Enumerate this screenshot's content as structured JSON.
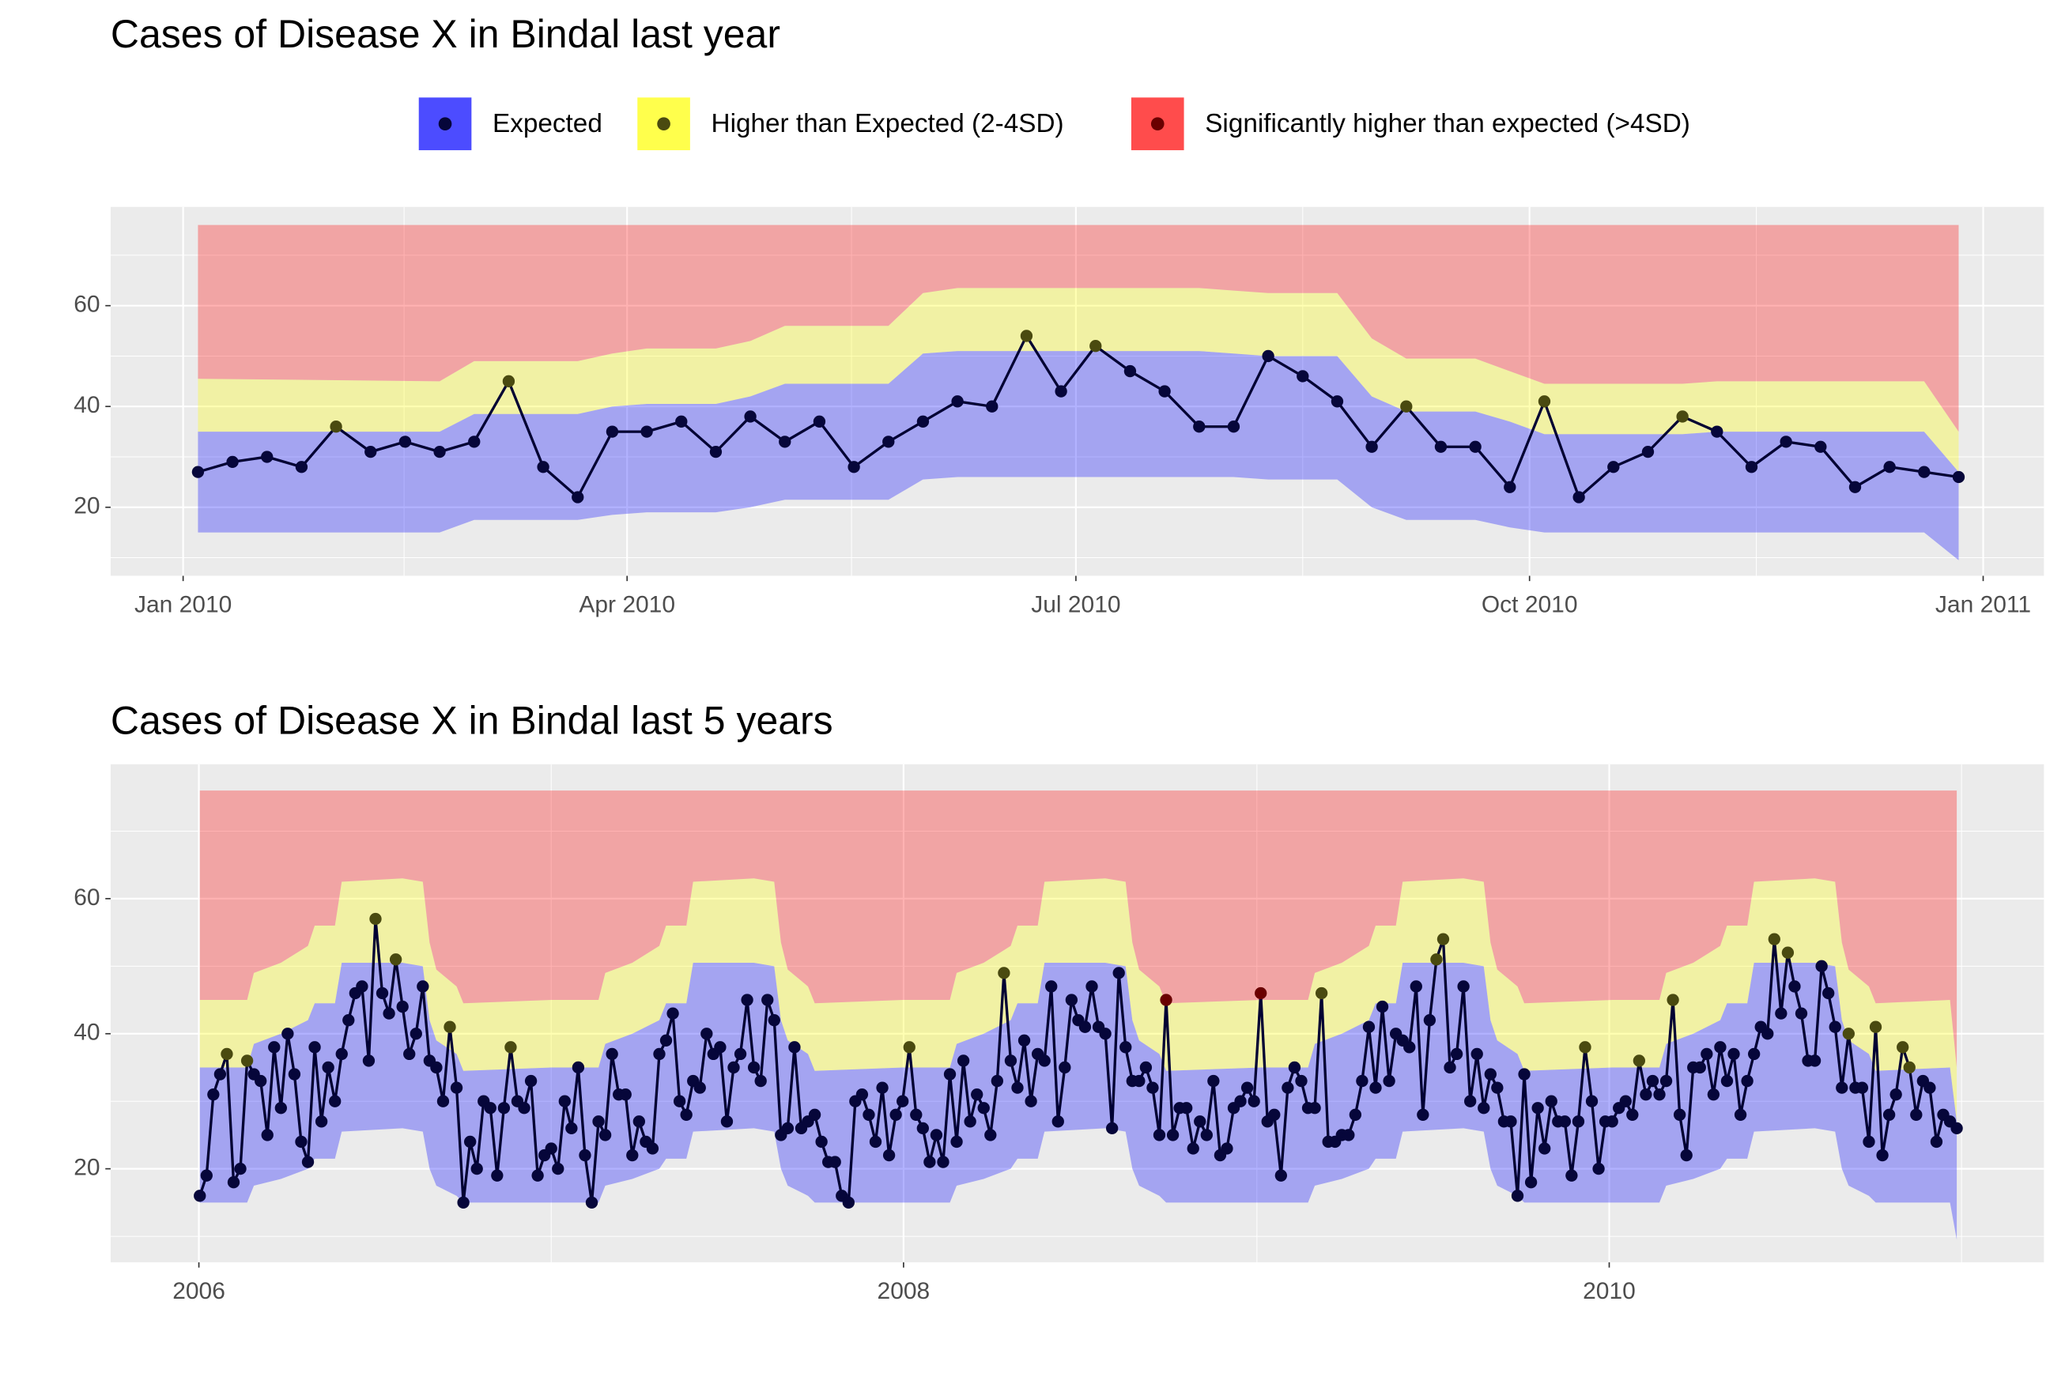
{
  "chart_data": [
    {
      "type": "line",
      "title": "Cases of Disease X in Bindal last year",
      "legend": "top",
      "grid": true,
      "fill_alpha": 0.3,
      "legend_alpha": 0.7,
      "line_color": "#000033",
      "bands": [
        {
          "name": "Expected",
          "color": "#0000ff",
          "point_color": "#06063a"
        },
        {
          "name": "Higher than Expected (2-4SD)",
          "color": "#ffff00",
          "point_color": "#4a4a10"
        },
        {
          "name": "Significantly higher than expected (>4SD)",
          "color": "#ff0000",
          "point_color": "#6a0000"
        }
      ],
      "x": [
        0,
        1,
        2,
        3,
        4,
        5,
        6,
        7,
        8,
        9,
        10,
        11,
        12,
        13,
        14,
        15,
        16,
        17,
        18,
        19,
        20,
        21,
        22,
        23,
        24,
        25,
        26,
        27,
        28,
        29,
        30,
        31,
        32,
        33,
        34,
        35,
        36,
        37,
        38,
        39,
        40,
        41,
        42,
        43,
        44,
        45,
        46,
        47,
        48,
        49,
        50,
        51
      ],
      "values": [
        27,
        29,
        30,
        28,
        36,
        31,
        33,
        31,
        33,
        45,
        28,
        22,
        35,
        35,
        37,
        31,
        38,
        33,
        37,
        28,
        33,
        37,
        41,
        40,
        54,
        43,
        52,
        47,
        43,
        36,
        36,
        50,
        46,
        41,
        32,
        40,
        32,
        32,
        24,
        41,
        22,
        28,
        31,
        38,
        35,
        28,
        33,
        32,
        24,
        28,
        27,
        26
      ],
      "band_x": [
        0,
        7,
        8,
        11,
        12,
        13,
        15,
        16,
        17,
        20,
        21,
        22,
        29,
        30,
        31,
        33,
        34,
        35,
        37,
        38,
        39,
        43,
        44,
        50,
        51
      ],
      "band_edges": [
        [
          15,
          15,
          17.5,
          17.5,
          18.5,
          19,
          19,
          20,
          21.5,
          21.5,
          25.5,
          26,
          26,
          26,
          25.5,
          25.5,
          20,
          17.5,
          17.5,
          16,
          15,
          15,
          15,
          15,
          9.5
        ],
        [
          35,
          35,
          38.5,
          38.5,
          40,
          40.5,
          40.5,
          42,
          44.5,
          44.5,
          50.5,
          51,
          51,
          50.5,
          50,
          50,
          42,
          39,
          39,
          37,
          34.5,
          34.5,
          35,
          35,
          27
        ],
        [
          45.5,
          45,
          49,
          49,
          50.5,
          51.5,
          51.5,
          53,
          56,
          56,
          62.5,
          63.5,
          63.5,
          63,
          62.5,
          62.5,
          53.5,
          49.5,
          49.5,
          47,
          44.5,
          44.5,
          45,
          45,
          35
        ],
        [
          76,
          76,
          76,
          76,
          76,
          76,
          76,
          76,
          76,
          76,
          76,
          76,
          76,
          76,
          76,
          76,
          76,
          76,
          76,
          76,
          76,
          76,
          76,
          76,
          76
        ]
      ],
      "xlim": [
        -2.53,
        53.47
      ],
      "xticks": [
        {
          "value": -0.43,
          "label": "Jan 2010"
        },
        {
          "value": 12.43,
          "label": "Apr 2010"
        },
        {
          "value": 25.43,
          "label": "Jul 2010"
        },
        {
          "value": 38.57,
          "label": "Oct 2010"
        },
        {
          "value": 51.71,
          "label": "Jan 2011"
        }
      ],
      "xminor": [
        5.97,
        18.93,
        32.0,
        45.14
      ],
      "ylim": [
        6.4,
        79.6
      ],
      "yticks": [
        20,
        40,
        60
      ],
      "yminor": [
        10,
        30,
        50,
        70
      ]
    },
    {
      "type": "line",
      "title": "Cases of Disease X in Bindal last 5 years",
      "grid": true,
      "fill_alpha": 0.3,
      "line_color": "#000033",
      "x": [
        0,
        1,
        2,
        3,
        4,
        5,
        6,
        7,
        8,
        9,
        10,
        11,
        12,
        13,
        14,
        15,
        16,
        17,
        18,
        19,
        20,
        21,
        22,
        23,
        24,
        25,
        26,
        27,
        28,
        29,
        30,
        31,
        32,
        33,
        34,
        35,
        36,
        37,
        38,
        39,
        40,
        41,
        42,
        43,
        44,
        45,
        46,
        47,
        48,
        49,
        50,
        51,
        52,
        53,
        54,
        55,
        56,
        57,
        58,
        59,
        60,
        61,
        62,
        63,
        64,
        65,
        66,
        67,
        68,
        69,
        70,
        71,
        72,
        73,
        74,
        75,
        76,
        77,
        78,
        79,
        80,
        81,
        82,
        83,
        84,
        85,
        86,
        87,
        88,
        89,
        90,
        91,
        92,
        93,
        94,
        95,
        96,
        97,
        98,
        99,
        100,
        101,
        102,
        103,
        104,
        105,
        106,
        107,
        108,
        109,
        110,
        111,
        112,
        113,
        114,
        115,
        116,
        117,
        118,
        119,
        120,
        121,
        122,
        123,
        124,
        125,
        126,
        127,
        128,
        129,
        130,
        131,
        132,
        133,
        134,
        135,
        136,
        137,
        138,
        139,
        140,
        141,
        142,
        143,
        144,
        145,
        146,
        147,
        148,
        149,
        150,
        151,
        152,
        153,
        154,
        155,
        156,
        157,
        158,
        159,
        160,
        161,
        162,
        163,
        164,
        165,
        166,
        167,
        168,
        169,
        170,
        171,
        172,
        173,
        174,
        175,
        176,
        177,
        178,
        179,
        180,
        181,
        182,
        183,
        184,
        185,
        186,
        187,
        188,
        189,
        190,
        191,
        192,
        193,
        194,
        195,
        196,
        197,
        198,
        199,
        200,
        201,
        202,
        203,
        204,
        205,
        206,
        207,
        208,
        209,
        210,
        211,
        212,
        213,
        214,
        215,
        216,
        217,
        218,
        219,
        220,
        221,
        222,
        223,
        224,
        225,
        226,
        227,
        228,
        229,
        230,
        231,
        232,
        233,
        234,
        235,
        236,
        237,
        238,
        239,
        240,
        241,
        242,
        243,
        244,
        245,
        246,
        247,
        248,
        249,
        250,
        251,
        252,
        253,
        254,
        255,
        256,
        257,
        258,
        259,
        260
      ],
      "values": [
        16,
        19,
        31,
        34,
        37,
        18,
        20,
        36,
        34,
        33,
        25,
        38,
        29,
        40,
        34,
        24,
        21,
        38,
        27,
        35,
        30,
        37,
        42,
        46,
        47,
        36,
        57,
        46,
        43,
        51,
        44,
        37,
        40,
        47,
        36,
        35,
        30,
        41,
        32,
        15,
        24,
        20,
        30,
        29,
        19,
        29,
        38,
        30,
        29,
        33,
        19,
        22,
        23,
        20,
        30,
        26,
        35,
        22,
        15,
        27,
        25,
        37,
        31,
        31,
        22,
        27,
        24,
        23,
        37,
        39,
        43,
        30,
        28,
        33,
        32,
        40,
        37,
        38,
        27,
        35,
        37,
        45,
        35,
        33,
        45,
        42,
        25,
        26,
        38,
        26,
        27,
        28,
        24,
        21,
        21,
        16,
        15,
        30,
        31,
        28,
        24,
        32,
        22,
        28,
        30,
        38,
        28,
        26,
        21,
        25,
        21,
        34,
        24,
        36,
        27,
        31,
        29,
        25,
        33,
        49,
        36,
        32,
        39,
        30,
        37,
        36,
        47,
        27,
        35,
        45,
        42,
        41,
        47,
        41,
        40,
        26,
        49,
        38,
        33,
        33,
        35,
        32,
        25,
        45,
        25,
        29,
        29,
        23,
        27,
        25,
        33,
        22,
        23,
        29,
        30,
        32,
        30,
        46,
        27,
        28,
        19,
        32,
        35,
        33,
        29,
        29,
        46,
        24,
        24,
        25,
        25,
        28,
        33,
        41,
        32,
        44,
        33,
        40,
        39,
        38,
        47,
        28,
        42,
        51,
        54,
        35,
        37,
        47,
        30,
        37,
        29,
        34,
        32,
        27,
        27,
        16,
        34,
        18,
        29,
        23,
        30,
        27,
        27,
        19,
        27,
        38,
        30,
        20,
        27,
        27,
        29,
        30,
        28,
        36,
        31,
        33,
        31,
        33,
        45,
        28,
        22,
        35,
        35,
        37,
        31,
        38,
        33,
        37,
        28,
        33,
        37,
        41,
        40,
        54,
        43,
        52,
        47,
        43,
        36,
        36,
        50,
        46,
        41,
        32,
        40,
        32,
        32,
        24,
        41,
        22,
        28,
        31,
        38,
        35,
        28,
        33,
        32,
        24,
        28,
        27,
        26
      ],
      "band_x": [
        0,
        7,
        8,
        12,
        16,
        17,
        20,
        21,
        30,
        33,
        34,
        35,
        38,
        39,
        52,
        59,
        60,
        64,
        68,
        69,
        72,
        73,
        82,
        85,
        86,
        87,
        90,
        91,
        104,
        111,
        112,
        116,
        120,
        121,
        124,
        125,
        134,
        137,
        138,
        139,
        142,
        143,
        157,
        164,
        165,
        169,
        173,
        174,
        177,
        178,
        187,
        190,
        191,
        192,
        195,
        196,
        209,
        216,
        217,
        221,
        225,
        226,
        229,
        230,
        239,
        242,
        243,
        244,
        247,
        248,
        259,
        260
      ],
      "band_edges": [
        [
          15,
          15,
          17.5,
          18.5,
          20,
          21.5,
          21.5,
          25.5,
          26,
          25.5,
          20,
          17.5,
          16,
          15,
          15,
          15,
          17.5,
          18.5,
          20,
          21.5,
          21.5,
          25.5,
          26,
          25.5,
          20,
          17.5,
          16,
          15,
          15,
          15,
          17.5,
          18.5,
          20,
          21.5,
          21.5,
          25.5,
          26,
          25.5,
          20,
          17.5,
          16,
          15,
          15,
          15,
          17.5,
          18.5,
          20,
          21.5,
          21.5,
          25.5,
          26,
          25.5,
          20,
          17.5,
          16,
          15,
          15,
          15,
          17.5,
          18.5,
          20,
          21.5,
          21.5,
          25.5,
          26,
          25.5,
          20,
          17.5,
          16,
          15,
          15,
          9.5
        ],
        [
          35,
          35,
          38.5,
          40,
          42,
          44.5,
          44.5,
          50.5,
          50.5,
          50,
          42,
          39,
          37,
          34.5,
          35,
          35,
          38.5,
          40,
          42,
          44.5,
          44.5,
          50.5,
          50.5,
          50,
          42,
          39,
          37,
          34.5,
          35,
          35,
          38.5,
          40,
          42,
          44.5,
          44.5,
          50.5,
          50.5,
          50,
          42,
          39,
          37,
          34.5,
          35,
          35,
          38.5,
          40,
          42,
          44.5,
          44.5,
          50.5,
          50.5,
          50,
          42,
          39,
          37,
          34.5,
          35,
          35,
          38.5,
          40,
          42,
          44.5,
          44.5,
          50.5,
          50.5,
          50,
          42,
          39,
          37,
          34.5,
          35,
          27
        ],
        [
          45,
          45,
          49,
          50.5,
          53,
          56,
          56,
          62.5,
          63,
          62.5,
          53.5,
          49.5,
          47,
          44.5,
          45,
          45,
          49,
          50.5,
          53,
          56,
          56,
          62.5,
          63,
          62.5,
          53.5,
          49.5,
          47,
          44.5,
          45,
          45,
          49,
          50.5,
          53,
          56,
          56,
          62.5,
          63,
          62.5,
          53.5,
          49.5,
          47,
          44.5,
          45,
          45,
          49,
          50.5,
          53,
          56,
          56,
          62.5,
          63,
          62.5,
          53.5,
          49.5,
          47,
          44.5,
          45,
          45,
          49,
          50.5,
          53,
          56,
          56,
          62.5,
          63,
          62.5,
          53.5,
          49.5,
          47,
          44.5,
          45,
          35
        ],
        [
          76,
          76,
          76,
          76,
          76,
          76,
          76,
          76,
          76,
          76,
          76,
          76,
          76,
          76,
          76,
          76,
          76,
          76,
          76,
          76,
          76,
          76,
          76,
          76,
          76,
          76,
          76,
          76,
          76,
          76,
          76,
          76,
          76,
          76,
          76,
          76,
          76,
          76,
          76,
          76,
          76,
          76,
          76,
          76,
          76,
          76,
          76,
          76,
          76,
          76,
          76,
          76,
          76,
          76,
          76,
          76,
          76,
          76,
          76,
          76,
          76,
          76,
          76,
          76,
          76,
          76,
          76,
          76,
          76,
          76,
          76,
          76
        ]
      ],
      "xlim": [
        -13.2,
        272.9
      ],
      "xticks": [
        {
          "value": -0.14,
          "label": "2006"
        },
        {
          "value": 104.14,
          "label": "2008"
        },
        {
          "value": 208.57,
          "label": "2010"
        }
      ],
      "xminor": [
        52.0,
        156.43,
        260.71
      ],
      "ylim": [
        6.15,
        79.9
      ],
      "yticks": [
        20,
        40,
        60
      ],
      "yminor": [
        10,
        30,
        50,
        70
      ]
    }
  ]
}
